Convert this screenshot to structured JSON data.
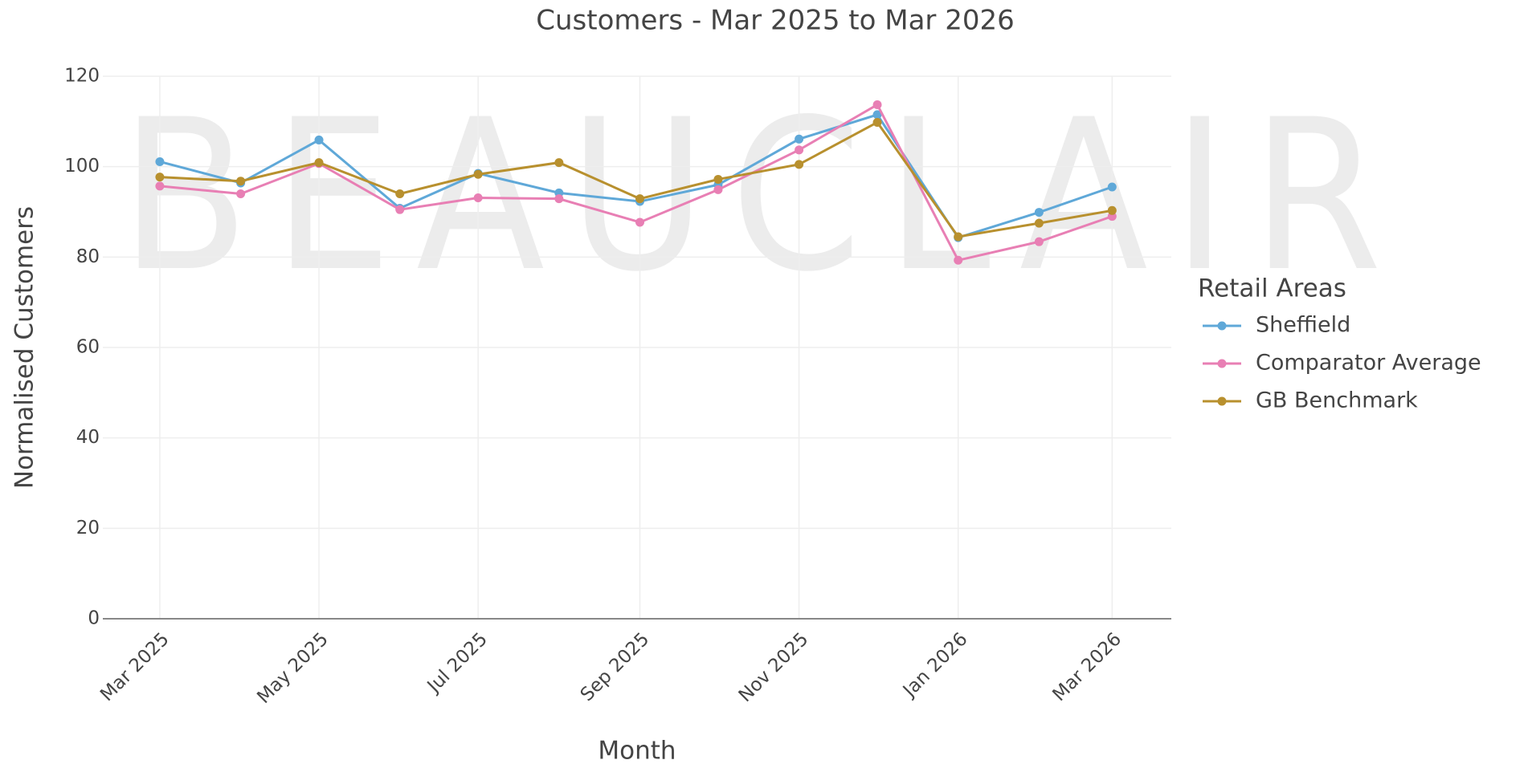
{
  "chart_data": {
    "type": "line",
    "title": "Customers - Mar 2025 to Mar 2026",
    "watermark": "BEAUCLAIR",
    "x_label": "Month",
    "y_label": "Normalised Customers",
    "x": [
      "2025-03",
      "2025-04",
      "2025-05",
      "2025-06",
      "2025-07",
      "2025-08",
      "2025-09",
      "2025-10",
      "2025-11",
      "2025-12",
      "2026-01",
      "2026-02",
      "2026-03"
    ],
    "xlim": [
      "2025-02",
      "2026-04"
    ],
    "xticks": [
      {
        "value": "2025-03",
        "label": "Mar 2025"
      },
      {
        "value": "2025-05",
        "label": "May 2025"
      },
      {
        "value": "2025-07",
        "label": "Jul 2025"
      },
      {
        "value": "2025-09",
        "label": "Sep 2025"
      },
      {
        "value": "2025-11",
        "label": "Nov 2025"
      },
      {
        "value": "2026-01",
        "label": "Jan 2026"
      },
      {
        "value": "2026-03",
        "label": "Mar 2026"
      }
    ],
    "ylim": [
      0,
      120
    ],
    "yticks": [
      0,
      20,
      40,
      60,
      80,
      100,
      120
    ],
    "grid": true,
    "legend_title": "Retail Areas",
    "legend_position": "right",
    "series": [
      {
        "name": "Sheffield",
        "color": "#5fa8d8",
        "values": [
          101.1,
          96.4,
          105.9,
          90.8,
          98.5,
          94.2,
          92.3,
          96,
          106.1,
          111.5,
          84.3,
          89.9,
          95.5
        ]
      },
      {
        "name": "Comparator Average",
        "color": "#e87fb4",
        "values": [
          95.7,
          94,
          100.7,
          90.5,
          93.1,
          92.9,
          87.7,
          94.9,
          103.7,
          113.7,
          79.3,
          83.4,
          89
        ]
      },
      {
        "name": "GB Benchmark",
        "color": "#b8902e",
        "values": [
          97.7,
          96.8,
          100.9,
          94,
          98.3,
          100.9,
          92.9,
          97.2,
          100.5,
          109.8,
          84.5,
          87.5,
          90.3
        ]
      }
    ]
  }
}
